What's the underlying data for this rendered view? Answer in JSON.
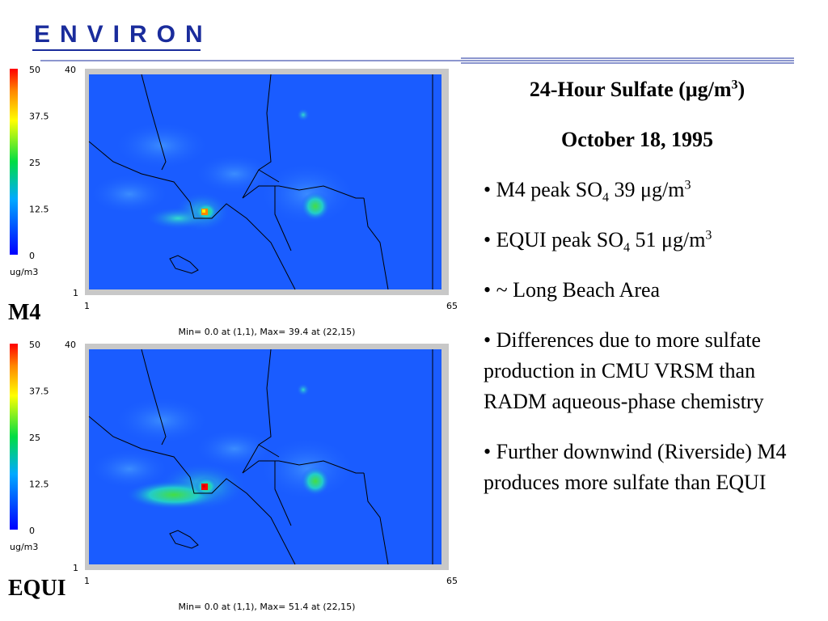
{
  "header": {
    "logo": "ENVIRON"
  },
  "panels": [
    {
      "label": "M4",
      "colorbar": {
        "ticks": [
          "50",
          "37.5",
          "25",
          "12.5",
          "0"
        ],
        "unit": "ug/m3"
      },
      "axes": {
        "y_top": "40",
        "y_bottom": "1",
        "x_left": "1",
        "x_right": "65"
      },
      "stats": "Min=   0.0 at (1,1), Max=  39.4 at (22,15)"
    },
    {
      "label": "EQUI",
      "colorbar": {
        "ticks": [
          "50",
          "37.5",
          "25",
          "12.5",
          "0"
        ],
        "unit": "ug/m3"
      },
      "axes": {
        "y_top": "40",
        "y_bottom": "1",
        "x_left": "1",
        "x_right": "65"
      },
      "stats": "Min=   0.0 at (1,1), Max=  51.4 at (22,15)"
    }
  ],
  "text": {
    "title": {
      "text": "24-Hour Sulfate (μg/m",
      "sup": "3",
      "close": ")"
    },
    "date": "October 18, 1995",
    "bullets": [
      {
        "text": "M4 peak SO",
        "sub": "4",
        "text2": " 39 μg/m",
        "sup": "3"
      },
      {
        "text": "EQUI peak SO",
        "sub": "4",
        "text2": " 51 μg/m",
        "sup": "3"
      },
      {
        "text": "~ Long Beach Area"
      },
      {
        "text": "Differences due to more sulfate production in CMU VRSM than RADM aqueous-phase chemistry"
      },
      {
        "text": "Further downwind (Riverside) M4 produces more sulfate than EQUI"
      }
    ]
  }
}
